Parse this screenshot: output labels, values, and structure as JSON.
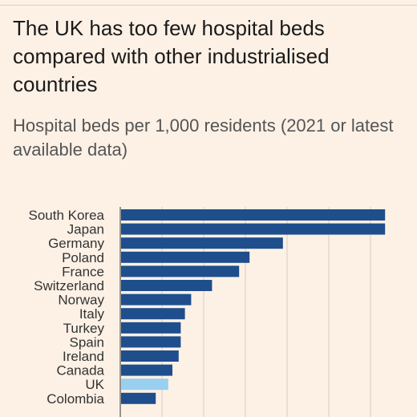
{
  "title": "The UK has too few hospital beds compared with other industrialised countries",
  "subtitle": "Hospital beds per 1,000 residents (2021 or latest available data)",
  "colors": {
    "background": "#fdf1e6",
    "bar": "#1f4e8c",
    "highlight": "#99d0ef",
    "grid": "#d6ccc4"
  },
  "chart_data": {
    "type": "bar",
    "orientation": "horizontal",
    "categories": [
      "South Korea",
      "Japan",
      "Germany",
      "Poland",
      "France",
      "Switzerland",
      "Norway",
      "Italy",
      "Turkey",
      "Spain",
      "Ireland",
      "Canada",
      "UK",
      "Colombia"
    ],
    "values": [
      12.7,
      12.7,
      7.8,
      6.2,
      5.7,
      4.4,
      3.4,
      3.1,
      2.9,
      2.9,
      2.8,
      2.5,
      2.3,
      1.7
    ],
    "highlight": "UK",
    "xlim": [
      0,
      13
    ],
    "gridlines": [
      2,
      4,
      6,
      8,
      10,
      12
    ],
    "grid": true,
    "legend": "none"
  }
}
